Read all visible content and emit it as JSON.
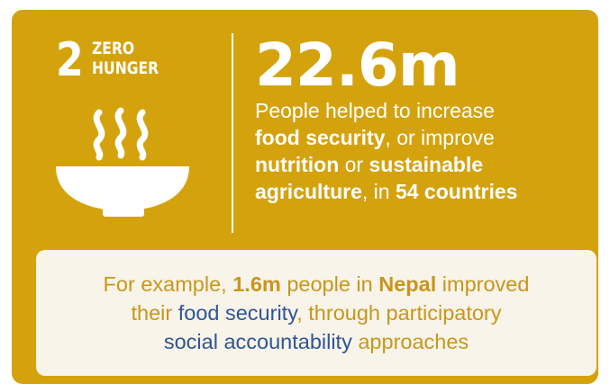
{
  "colors": {
    "card_background": "#d4a20d",
    "panel_background": "#f8f4ea",
    "panel_text": "#c9961b",
    "highlight_blue": "#2f5597"
  },
  "goal": {
    "number": "2",
    "title_line1": "ZERO",
    "title_line2": "HUNGER",
    "icon": "soup-bowl-icon"
  },
  "stat": {
    "value": "22.6m",
    "line_intro": "People helped to increase",
    "term_food_security": "food security",
    "text_or_improve": ", or improve",
    "term_nutrition": "nutrition",
    "text_or": " or ",
    "term_sustainable": "sustainable",
    "term_agriculture": "agriculture",
    "text_in": ", in ",
    "countries": "54 countries"
  },
  "example": {
    "intro": "For example, ",
    "people_count": "1.6m",
    "people_in": " people in ",
    "country": "Nepal",
    "improved": " improved",
    "their": "their ",
    "food_security": "food security",
    "through": ", through participatory",
    "social_accountability": "social accountability",
    "approaches": " approaches"
  }
}
